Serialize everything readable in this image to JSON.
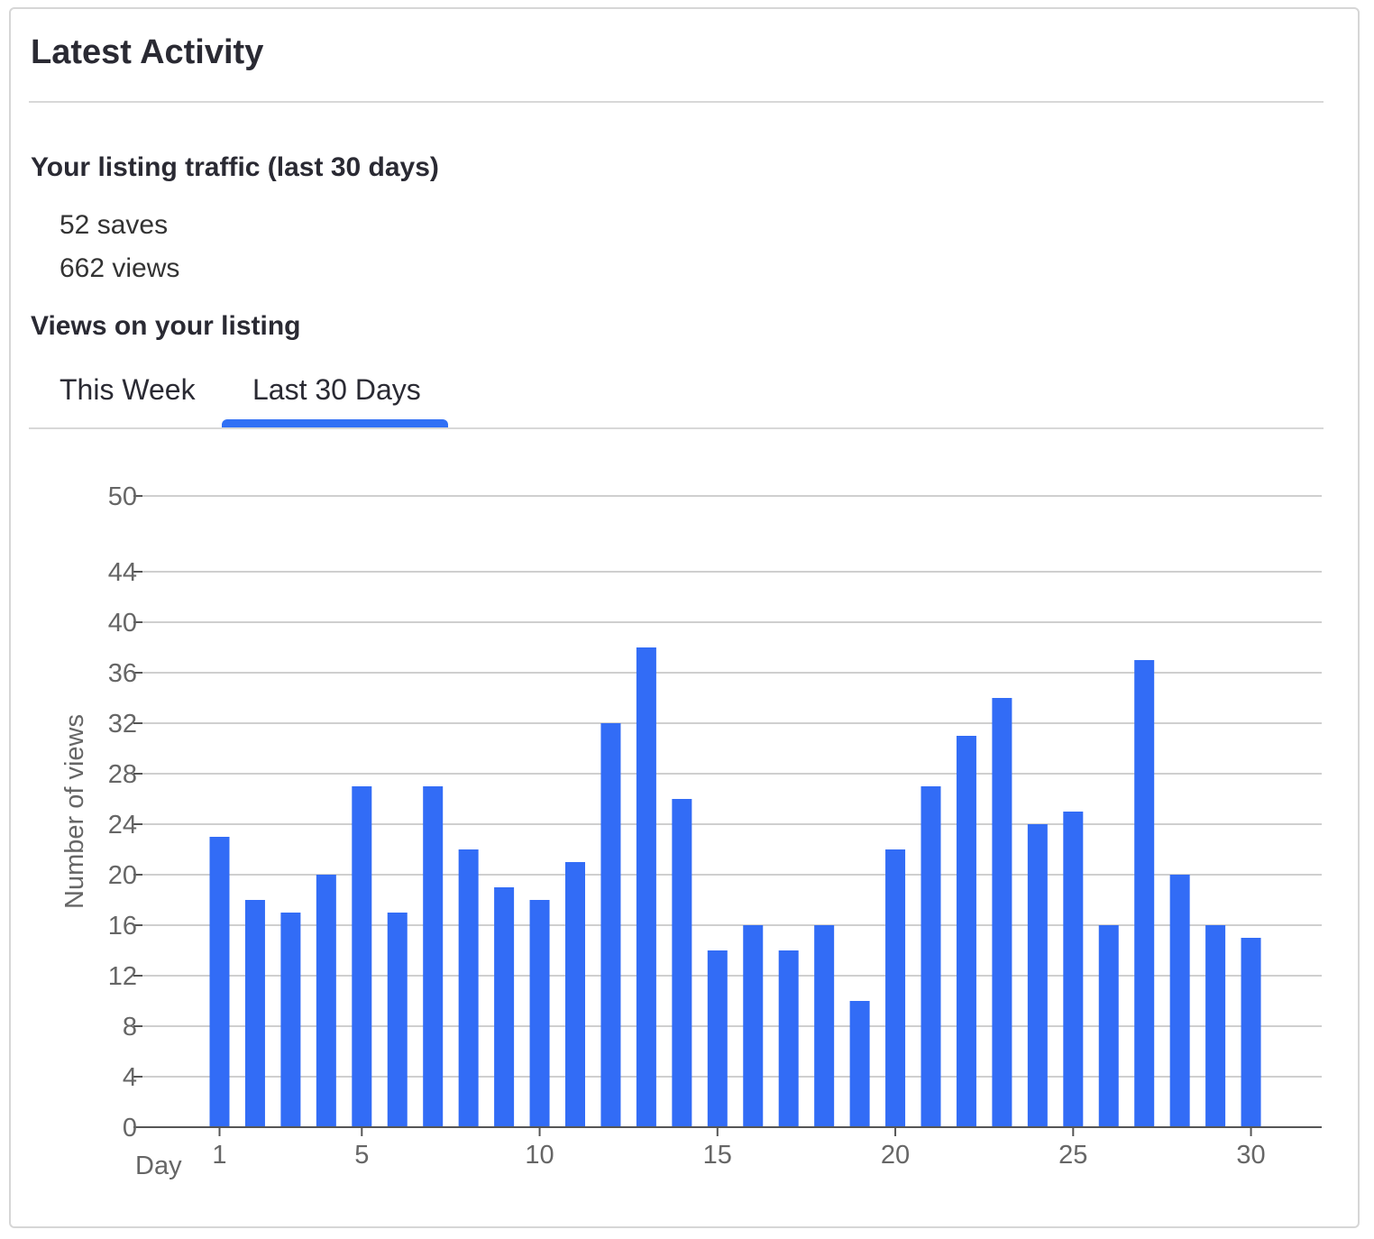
{
  "card": {
    "title": "Latest Activity"
  },
  "traffic": {
    "heading": "Your listing traffic (last 30 days)",
    "saves": "52 saves",
    "views": "662 views"
  },
  "views_section": {
    "heading": "Views on your listing",
    "tabs": [
      {
        "label": "This Week",
        "selected": false
      },
      {
        "label": "Last 30 Days",
        "selected": true
      }
    ]
  },
  "colors": {
    "bar": "#326cf6",
    "tab_indicator": "#3170f5",
    "gridline": "#cfcfcf",
    "axis": "#555555",
    "tick_text": "#666666"
  },
  "chart_data": {
    "type": "bar",
    "title": "",
    "xlabel": "Day",
    "ylabel": "Number of views",
    "x": [
      1,
      2,
      3,
      4,
      5,
      6,
      7,
      8,
      9,
      10,
      11,
      12,
      13,
      14,
      15,
      16,
      17,
      18,
      19,
      20,
      21,
      22,
      23,
      24,
      25,
      26,
      27,
      28,
      29,
      30
    ],
    "values": [
      23,
      18,
      17,
      20,
      27,
      17,
      27,
      22,
      19,
      18,
      21,
      32,
      38,
      26,
      14,
      16,
      14,
      16,
      10,
      22,
      27,
      31,
      34,
      24,
      25,
      16,
      37,
      20,
      16,
      15
    ],
    "x_ticks": [
      1,
      5,
      10,
      15,
      20,
      25,
      30
    ],
    "y_ticks": [
      0,
      4,
      8,
      12,
      16,
      20,
      24,
      28,
      32,
      36,
      40,
      44,
      50
    ],
    "ylim": [
      0,
      50
    ],
    "grid": true
  }
}
